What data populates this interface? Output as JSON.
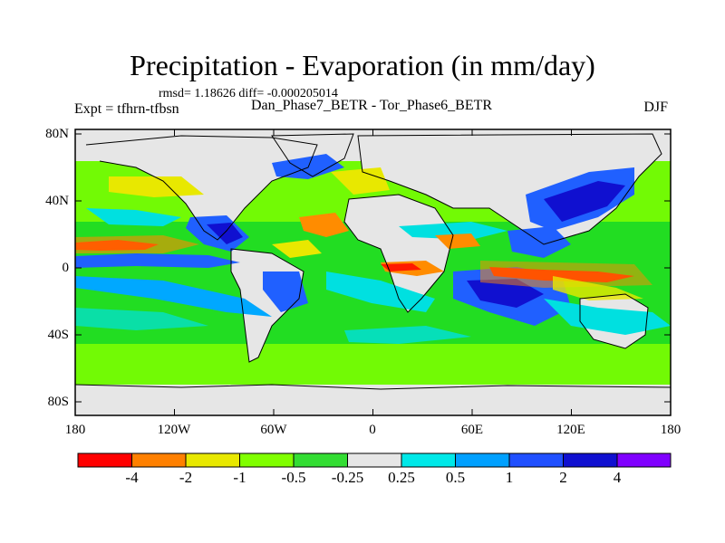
{
  "title": "Precipitation - Evaporation (in mm/day)",
  "stats": "rmsd= 1.18626 diff= -0.000205014",
  "expt_label": "Expt = tfhrn-tfbsn",
  "center_label": "Dan_Phase7_BETR - Tor_Phase6_BETR",
  "season_label": "DJF",
  "axes": {
    "x_ticks": [
      "180",
      "120W",
      "60W",
      "0",
      "60E",
      "120E",
      "180"
    ],
    "y_ticks": [
      "80N",
      "40N",
      "0",
      "40S",
      "80S"
    ]
  },
  "colorbar": {
    "labels": [
      "-4",
      "-2",
      "-1",
      "-0.5",
      "-0.25",
      "0.25",
      "0.5",
      "1",
      "2",
      "4"
    ],
    "colors": [
      "#ff0000",
      "#ff8000",
      "#e8e800",
      "#80ff00",
      "#33dd33",
      "#e6e6e6",
      "#00e8e8",
      "#00a0ff",
      "#2050ff",
      "#1010d0",
      "#8000ff"
    ]
  },
  "palette": {
    "land": "#e6e6e6",
    "red": "#ff1a00",
    "orange": "#ff8c00",
    "yellow": "#e8e800",
    "lightgreen": "#80ff00",
    "green": "#22dd22",
    "cyan": "#00e0e0",
    "lightblue": "#00a8ff",
    "blue": "#2060ff",
    "darkblue": "#1010d0"
  }
}
